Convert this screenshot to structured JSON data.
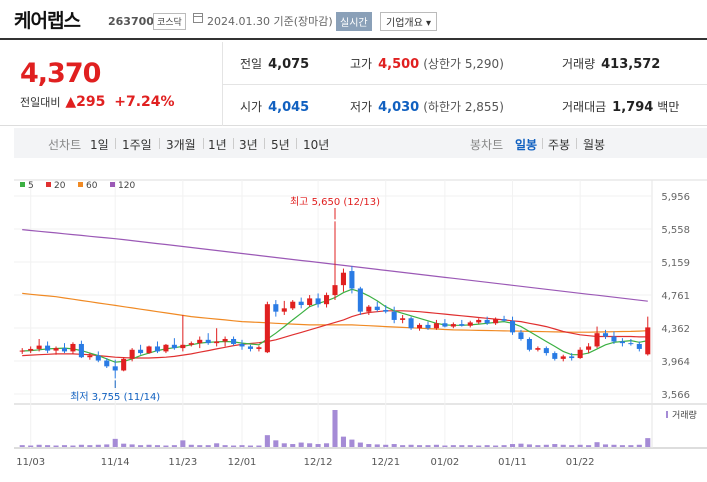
{
  "header": {
    "name": "케어랩스",
    "code": "263700",
    "market": "코스닥",
    "date_text": "2024.01.30 기준(장마감)",
    "realtime_label": "실시간",
    "info_label": "기업개요 ▾"
  },
  "price": {
    "current": "4,370",
    "change_label": "전일대비",
    "change_value": "▲295",
    "change_pct": "+7.24%"
  },
  "stats": {
    "prev_close": {
      "label": "전일",
      "value": "4,075"
    },
    "high": {
      "label": "고가",
      "value": "4,500",
      "note": "(상한가 5,290)"
    },
    "volume": {
      "label": "거래량",
      "value": "413,572"
    },
    "open": {
      "label": "시가",
      "value": "4,045"
    },
    "low": {
      "label": "저가",
      "value": "4,030",
      "note": "(하한가 2,855)"
    },
    "amount": {
      "label": "거래대금",
      "value": "1,794",
      "unit": "백만"
    }
  },
  "periods": {
    "line_label": "선차트",
    "line_items": [
      "1일",
      "1주일",
      "3개월",
      "1년",
      "3년",
      "5년",
      "10년"
    ],
    "candle_label": "봉차트",
    "candle_items": [
      "일봉",
      "주봉",
      "월봉"
    ],
    "candle_active": "일봉"
  },
  "chart_data": {
    "type": "candlestick",
    "legend": [
      "5",
      "20",
      "60",
      "120"
    ],
    "colors": {
      "ma5": "#3cb043",
      "ma20": "#e03030",
      "ma60": "#f08a24",
      "ma120": "#9b59b6",
      "up": "#e02020",
      "down": "#2a7be4",
      "volume": "#a58bd6"
    },
    "y_ticks": [
      "5,956",
      "5,558",
      "5,159",
      "4,761",
      "4,362",
      "3,964",
      "3,566"
    ],
    "ylim": [
      3566,
      5956
    ],
    "x_ticks": [
      "11/03",
      "11/14",
      "11/23",
      "12/01",
      "12/12",
      "12/21",
      "01/02",
      "01/11",
      "01/22"
    ],
    "annotation_high": "최고 5,650 (12/13)",
    "annotation_low": "최저 3,755 (11/14)",
    "volume_label": "거래량",
    "candles": [
      [
        4080,
        4120,
        4050,
        4090
      ],
      [
        4090,
        4140,
        4060,
        4110
      ],
      [
        4110,
        4230,
        4080,
        4150
      ],
      [
        4150,
        4200,
        4060,
        4090
      ],
      [
        4090,
        4140,
        4040,
        4120
      ],
      [
        4120,
        4180,
        4060,
        4080
      ],
      [
        4080,
        4190,
        4050,
        4170
      ],
      [
        4170,
        4210,
        4000,
        4010
      ],
      [
        4010,
        4060,
        3980,
        4030
      ],
      [
        4030,
        4080,
        3950,
        3970
      ],
      [
        3970,
        4000,
        3880,
        3900
      ],
      [
        3900,
        3980,
        3755,
        3850
      ],
      [
        3850,
        4010,
        3840,
        3990
      ],
      [
        3990,
        4120,
        3960,
        4100
      ],
      [
        4100,
        4160,
        4040,
        4060
      ],
      [
        4060,
        4150,
        4050,
        4140
      ],
      [
        4140,
        4200,
        4060,
        4080
      ],
      [
        4080,
        4170,
        4060,
        4160
      ],
      [
        4160,
        4240,
        4100,
        4120
      ],
      [
        4120,
        4520,
        4080,
        4160
      ],
      [
        4160,
        4200,
        4140,
        4180
      ],
      [
        4180,
        4260,
        4120,
        4220
      ],
      [
        4220,
        4300,
        4160,
        4180
      ],
      [
        4180,
        4360,
        4140,
        4200
      ],
      [
        4200,
        4260,
        4140,
        4230
      ],
      [
        4230,
        4260,
        4150,
        4170
      ],
      [
        4170,
        4220,
        4100,
        4140
      ],
      [
        4140,
        4160,
        4080,
        4110
      ],
      [
        4110,
        4150,
        4080,
        4130
      ],
      [
        4070,
        4680,
        4060,
        4650
      ],
      [
        4650,
        4700,
        4500,
        4560
      ],
      [
        4560,
        4690,
        4520,
        4600
      ],
      [
        4600,
        4700,
        4580,
        4680
      ],
      [
        4680,
        4730,
        4600,
        4640
      ],
      [
        4640,
        4760,
        4620,
        4720
      ],
      [
        4720,
        4780,
        4610,
        4650
      ],
      [
        4650,
        4790,
        4610,
        4760
      ],
      [
        4760,
        5650,
        4700,
        4880
      ],
      [
        4880,
        5080,
        4800,
        5030
      ],
      [
        5050,
        5110,
        4780,
        4840
      ],
      [
        4840,
        4860,
        4520,
        4560
      ],
      [
        4560,
        4640,
        4520,
        4620
      ],
      [
        4620,
        4680,
        4560,
        4580
      ],
      [
        4580,
        4640,
        4540,
        4560
      ],
      [
        4560,
        4620,
        4420,
        4460
      ],
      [
        4460,
        4520,
        4420,
        4480
      ],
      [
        4480,
        4500,
        4340,
        4360
      ],
      [
        4360,
        4420,
        4330,
        4400
      ],
      [
        4400,
        4440,
        4340,
        4360
      ],
      [
        4360,
        4460,
        4340,
        4420
      ],
      [
        4420,
        4470,
        4370,
        4380
      ],
      [
        4380,
        4430,
        4360,
        4410
      ],
      [
        4410,
        4460,
        4380,
        4390
      ],
      [
        4390,
        4450,
        4370,
        4430
      ],
      [
        4430,
        4480,
        4410,
        4460
      ],
      [
        4460,
        4500,
        4400,
        4420
      ],
      [
        4420,
        4490,
        4400,
        4470
      ],
      [
        4470,
        4510,
        4440,
        4450
      ],
      [
        4450,
        4500,
        4280,
        4310
      ],
      [
        4310,
        4340,
        4210,
        4230
      ],
      [
        4230,
        4250,
        4080,
        4100
      ],
      [
        4100,
        4140,
        4080,
        4120
      ],
      [
        4120,
        4140,
        4030,
        4060
      ],
      [
        4060,
        4080,
        3970,
        3990
      ],
      [
        3990,
        4040,
        3960,
        4020
      ],
      [
        4020,
        4060,
        3970,
        4000
      ],
      [
        4000,
        4130,
        3990,
        4100
      ],
      [
        4100,
        4180,
        4060,
        4140
      ],
      [
        4140,
        4380,
        4120,
        4300
      ],
      [
        4300,
        4340,
        4230,
        4260
      ],
      [
        4260,
        4320,
        4170,
        4200
      ],
      [
        4200,
        4240,
        4140,
        4180
      ],
      [
        4180,
        4230,
        4150,
        4170
      ],
      [
        4170,
        4200,
        4080,
        4110
      ],
      [
        4045,
        4500,
        4030,
        4370
      ]
    ],
    "ma5": [
      4085,
      4090,
      4100,
      4110,
      4115,
      4120,
      4110,
      4090,
      4060,
      4030,
      3990,
      3950,
      3960,
      3990,
      4030,
      4060,
      4090,
      4110,
      4125,
      4140,
      4160,
      4180,
      4190,
      4195,
      4200,
      4195,
      4180,
      4170,
      4160,
      4230,
      4300,
      4380,
      4460,
      4540,
      4620,
      4660,
      4690,
      4730,
      4790,
      4830,
      4800,
      4750,
      4690,
      4620,
      4570,
      4540,
      4510,
      4480,
      4450,
      4420,
      4400,
      4395,
      4395,
      4400,
      4410,
      4420,
      4430,
      4440,
      4420,
      4380,
      4320,
      4260,
      4200,
      4140,
      4080,
      4040,
      4040,
      4060,
      4110,
      4160,
      4190,
      4200,
      4210,
      4190,
      4210
    ],
    "ma20": [
      4030,
      4035,
      4040,
      4045,
      4050,
      4050,
      4050,
      4045,
      4040,
      4030,
      4020,
      4010,
      4005,
      4000,
      4000,
      4000,
      4005,
      4010,
      4020,
      4035,
      4050,
      4070,
      4090,
      4110,
      4130,
      4150,
      4165,
      4175,
      4185,
      4200,
      4220,
      4250,
      4280,
      4310,
      4340,
      4370,
      4400,
      4430,
      4460,
      4500,
      4530,
      4550,
      4560,
      4570,
      4570,
      4570,
      4565,
      4560,
      4550,
      4540,
      4530,
      4520,
      4510,
      4500,
      4490,
      4480,
      4470,
      4460,
      4450,
      4440,
      4420,
      4400,
      4380,
      4350,
      4320,
      4300,
      4280,
      4270,
      4260,
      4260,
      4260,
      4260,
      4260,
      4255,
      4255
    ],
    "ma60": [
      4780,
      4770,
      4760,
      4750,
      4740,
      4725,
      4710,
      4695,
      4680,
      4665,
      4650,
      4635,
      4620,
      4605,
      4590,
      4575,
      4560,
      4545,
      4530,
      4515,
      4500,
      4490,
      4480,
      4470,
      4460,
      4450,
      4440,
      4435,
      4430,
      4425,
      4420,
      4415,
      4410,
      4405,
      4400,
      4400,
      4400,
      4400,
      4400,
      4400,
      4395,
      4390,
      4385,
      4380,
      4375,
      4370,
      4365,
      4360,
      4355,
      4350,
      4345,
      4340,
      4338,
      4336,
      4334,
      4332,
      4330,
      4328,
      4326,
      4324,
      4322,
      4320,
      4318,
      4316,
      4314,
      4312,
      4312,
      4312,
      4314,
      4316,
      4318,
      4320,
      4322,
      4325,
      4330
    ],
    "ma120": [
      5550,
      5540,
      5530,
      5520,
      5510,
      5500,
      5490,
      5480,
      5470,
      5460,
      5450,
      5440,
      5430,
      5418,
      5406,
      5394,
      5382,
      5370,
      5358,
      5346,
      5334,
      5322,
      5310,
      5298,
      5286,
      5274,
      5262,
      5250,
      5238,
      5226,
      5214,
      5202,
      5190,
      5178,
      5166,
      5154,
      5142,
      5130,
      5118,
      5106,
      5094,
      5082,
      5070,
      5058,
      5046,
      5034,
      5022,
      5010,
      4998,
      4986,
      4974,
      4962,
      4950,
      4938,
      4926,
      4914,
      4902,
      4890,
      4878,
      4866,
      4854,
      4842,
      4830,
      4818,
      4806,
      4794,
      4782,
      4770,
      4758,
      4746,
      4734,
      4722,
      4710,
      4698,
      4686
    ],
    "volume": [
      0.05,
      0.04,
      0.06,
      0.05,
      0.04,
      0.05,
      0.04,
      0.06,
      0.05,
      0.06,
      0.07,
      0.22,
      0.09,
      0.07,
      0.05,
      0.06,
      0.05,
      0.04,
      0.05,
      0.18,
      0.06,
      0.05,
      0.05,
      0.1,
      0.05,
      0.04,
      0.05,
      0.04,
      0.04,
      0.32,
      0.18,
      0.1,
      0.08,
      0.12,
      0.1,
      0.08,
      0.1,
      1.0,
      0.28,
      0.2,
      0.12,
      0.08,
      0.07,
      0.06,
      0.08,
      0.05,
      0.06,
      0.05,
      0.05,
      0.06,
      0.04,
      0.05,
      0.05,
      0.05,
      0.04,
      0.05,
      0.04,
      0.05,
      0.08,
      0.09,
      0.07,
      0.05,
      0.06,
      0.08,
      0.06,
      0.05,
      0.06,
      0.05,
      0.13,
      0.07,
      0.06,
      0.05,
      0.05,
      0.06,
      0.24
    ]
  }
}
